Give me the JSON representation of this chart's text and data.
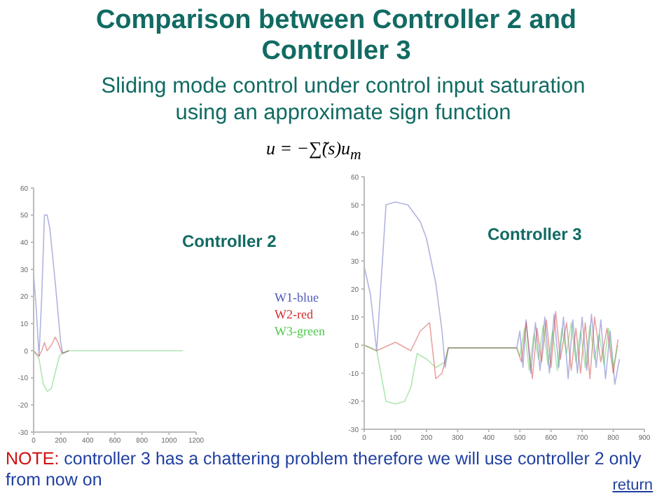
{
  "chart_data": [
    {
      "type": "line",
      "title": "Comparison between Controller 2 and Controller 3",
      "subtitle": "Sliding mode control under control input saturation using an approximate sign function",
      "annotations": [
        "u = −∑̃(s)u$_{m}$",
        "Controller 2",
        "NOTE: controller 3 has a chattering problem therefore we will use controller 2 only from now on",
        "return"
      ],
      "xlim": [
        0,
        1200
      ],
      "xticks": [
        0,
        200,
        400,
        600,
        800,
        1000,
        1200
      ],
      "ylim": [
        -30,
        60
      ],
      "yticks": [
        -30,
        -20,
        -10,
        0,
        10,
        20,
        30,
        40,
        50,
        60
      ],
      "grid": false,
      "legend": "right",
      "marker": "none",
      "series": [
        {
          "name": "W1-blue",
          "color": "#5058b8",
          "x": [
            0,
            20,
            40,
            60,
            80,
            100,
            120,
            160,
            200,
            215,
            260
          ],
          "values": [
            28,
            15,
            -2,
            20,
            50,
            50,
            45,
            25,
            3,
            -1,
            0
          ]
        },
        {
          "name": "W2-red",
          "color": "#d03030",
          "x": [
            0,
            40,
            60,
            80,
            100,
            130,
            160,
            180,
            210,
            260
          ],
          "values": [
            0,
            -2,
            0,
            3,
            0,
            2,
            5,
            3,
            -1,
            0
          ]
        },
        {
          "name": "W3-green",
          "color": "#50c850",
          "x": [
            0,
            40,
            70,
            100,
            130,
            160,
            190,
            210,
            260,
            1100
          ],
          "values": [
            0,
            -3,
            -12,
            -15,
            -14,
            -8,
            -2,
            -1,
            0,
            0
          ]
        }
      ]
    },
    {
      "type": "line",
      "title": "Controller 3",
      "xlim": [
        0,
        900
      ],
      "xticks": [
        0,
        100,
        200,
        300,
        400,
        500,
        600,
        700,
        800,
        900
      ],
      "ylim": [
        -30,
        60
      ],
      "yticks": [
        -30,
        -20,
        -10,
        0,
        10,
        20,
        30,
        40,
        50,
        60
      ],
      "grid": false,
      "marker": "none",
      "series": [
        {
          "color": "#5058b8",
          "x": [
            0,
            20,
            40,
            70,
            100,
            140,
            160,
            180,
            200,
            230,
            250,
            260,
            270,
            490,
            500,
            510,
            520,
            535,
            550,
            565,
            580,
            595,
            610,
            625,
            640,
            655,
            670,
            685,
            700,
            715,
            730,
            745,
            760,
            775,
            790,
            805,
            820
          ],
          "values": [
            28,
            18,
            -2,
            50,
            51,
            50,
            47,
            44,
            38,
            22,
            5,
            -8,
            -1,
            -1,
            5,
            -8,
            9,
            -10,
            8,
            -9,
            10,
            -10,
            11,
            -8,
            10,
            -12,
            9,
            -10,
            10,
            -9,
            11,
            -8,
            9,
            -12,
            5,
            -14,
            -5
          ]
        },
        {
          "color": "#d03030",
          "x": [
            0,
            40,
            100,
            150,
            180,
            210,
            230,
            250,
            270,
            490,
            505,
            520,
            540,
            555,
            570,
            585,
            600,
            615,
            630,
            650,
            665,
            680,
            695,
            710,
            725,
            740,
            760,
            780,
            800,
            815
          ],
          "values": [
            0,
            -2,
            1,
            -2,
            5,
            8,
            -12,
            -10,
            -1,
            -1,
            -6,
            8,
            -12,
            6,
            -6,
            9,
            -8,
            12,
            -5,
            8,
            -9,
            6,
            -10,
            8,
            -12,
            10,
            -6,
            6,
            -10,
            2
          ]
        },
        {
          "color": "#50c850",
          "x": [
            0,
            40,
            70,
            100,
            130,
            150,
            170,
            200,
            230,
            260,
            270,
            490,
            500,
            515,
            530,
            545,
            560,
            575,
            590,
            605,
            620,
            635,
            650,
            665,
            680,
            695,
            710,
            725,
            740,
            755,
            770,
            785,
            800,
            815
          ],
          "values": [
            0,
            -2,
            -20,
            -21,
            -20,
            -15,
            -3,
            -5,
            -8,
            -6,
            -1,
            -1,
            -4,
            6,
            -9,
            4,
            -5,
            7,
            -7,
            5,
            -9,
            6,
            -3,
            8,
            -6,
            5,
            -8,
            7,
            -5,
            4,
            -7,
            6,
            -8,
            0
          ]
        }
      ]
    }
  ]
}
